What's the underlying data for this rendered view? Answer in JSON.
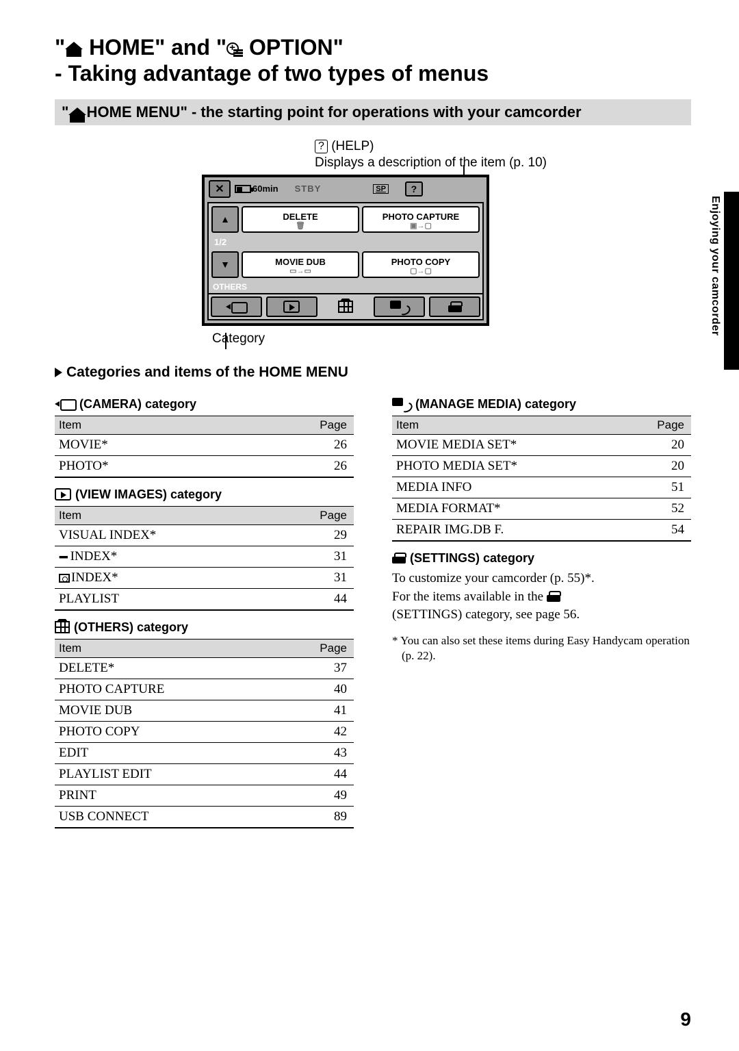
{
  "title_line1_prefix": "\"",
  "title_home": " HOME\" and \"",
  "title_option": " OPTION\"",
  "title_line2": "- Taking advantage of two types of menus",
  "graybar_prefix": "\"",
  "graybar_text": " HOME MENU\" - the starting point for operations with your camcorder",
  "help_q": "?",
  "help_label": "(HELP)",
  "help_desc": "Displays a description of the item (p. 10)",
  "screen": {
    "battery": "60min",
    "stby": "STBY",
    "sp": "SP",
    "help": "?",
    "btn_delete": "DELETE",
    "btn_photo_capture": "PHOTO CAPTURE",
    "page": "1/2",
    "btn_movie_dub": "MOVIE DUB",
    "btn_photo_copy": "PHOTO COPY",
    "others": "OTHERS"
  },
  "category_label": "Category",
  "section_heading": "Categories and items of the HOME MENU",
  "table_header_item": "Item",
  "table_header_page": "Page",
  "camera": {
    "title": "(CAMERA) category",
    "rows": [
      {
        "item": "MOVIE*",
        "page": "26"
      },
      {
        "item": "PHOTO*",
        "page": "26"
      }
    ]
  },
  "view": {
    "title": "(VIEW IMAGES) category",
    "rows": [
      {
        "item": "VISUAL INDEX*",
        "page": "29",
        "icon": ""
      },
      {
        "item": "INDEX*",
        "page": "31",
        "icon": "film"
      },
      {
        "item": "INDEX*",
        "page": "31",
        "icon": "photo"
      },
      {
        "item": "PLAYLIST",
        "page": "44",
        "icon": ""
      }
    ]
  },
  "others": {
    "title": "(OTHERS) category",
    "rows": [
      {
        "item": "DELETE*",
        "page": "37"
      },
      {
        "item": "PHOTO CAPTURE",
        "page": "40"
      },
      {
        "item": "MOVIE DUB",
        "page": "41"
      },
      {
        "item": "PHOTO COPY",
        "page": "42"
      },
      {
        "item": "EDIT",
        "page": "43"
      },
      {
        "item": "PLAYLIST EDIT",
        "page": "44"
      },
      {
        "item": "PRINT",
        "page": "49"
      },
      {
        "item": "USB CONNECT",
        "page": "89"
      }
    ]
  },
  "media": {
    "title": "(MANAGE MEDIA) category",
    "rows": [
      {
        "item": "MOVIE MEDIA SET*",
        "page": "20"
      },
      {
        "item": "PHOTO MEDIA SET*",
        "page": "20"
      },
      {
        "item": "MEDIA INFO",
        "page": "51"
      },
      {
        "item": "MEDIA FORMAT*",
        "page": "52"
      },
      {
        "item": "REPAIR IMG.DB F.",
        "page": "54"
      }
    ]
  },
  "settings": {
    "title": "(SETTINGS) category",
    "text1": "To customize your camcorder (p. 55)*.",
    "text2a": "For the items available in the ",
    "text2b": "(SETTINGS) category, see page 56."
  },
  "footnote": "* You can also set these items during Easy Handycam operation (p. 22).",
  "side_text": "Enjoying your camcorder",
  "page_number": "9"
}
